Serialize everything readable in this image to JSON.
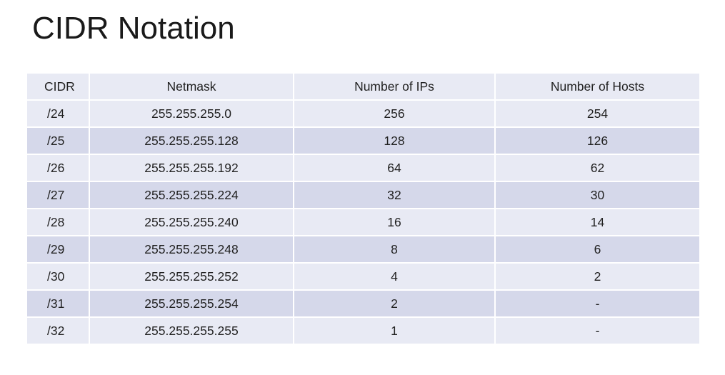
{
  "title": "CIDR Notation",
  "table": {
    "headers": {
      "cidr": "CIDR",
      "netmask": "Netmask",
      "ips": "Number of IPs",
      "hosts": "Number of Hosts"
    },
    "rows": [
      {
        "cidr": "/24",
        "netmask": "255.255.255.0",
        "ips": "256",
        "hosts": "254"
      },
      {
        "cidr": "/25",
        "netmask": "255.255.255.128",
        "ips": "128",
        "hosts": "126"
      },
      {
        "cidr": "/26",
        "netmask": "255.255.255.192",
        "ips": "64",
        "hosts": "62"
      },
      {
        "cidr": "/27",
        "netmask": "255.255.255.224",
        "ips": "32",
        "hosts": "30"
      },
      {
        "cidr": "/28",
        "netmask": "255.255.255.240",
        "ips": "16",
        "hosts": "14"
      },
      {
        "cidr": "/29",
        "netmask": "255.255.255.248",
        "ips": "8",
        "hosts": "6"
      },
      {
        "cidr": "/30",
        "netmask": "255.255.255.252",
        "ips": "4",
        "hosts": "2"
      },
      {
        "cidr": "/31",
        "netmask": "255.255.255.254",
        "ips": "2",
        "hosts": "-"
      },
      {
        "cidr": "/32",
        "netmask": "255.255.255.255",
        "ips": "1",
        "hosts": "-"
      }
    ]
  },
  "colors": {
    "header_row": "#e8eaf4",
    "band_light": "#e8eaf4",
    "band_dark": "#d5d8ea"
  }
}
